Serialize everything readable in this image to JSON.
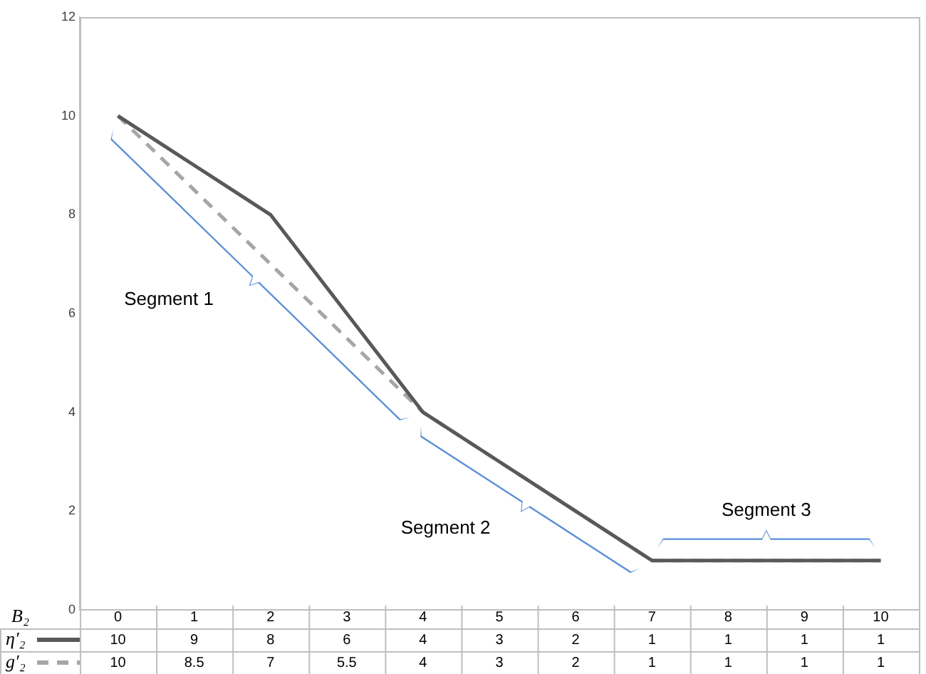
{
  "chart_data": {
    "type": "line",
    "xlabel": "B₂",
    "categories": [
      "0",
      "1",
      "2",
      "3",
      "4",
      "5",
      "6",
      "7",
      "8",
      "9",
      "10"
    ],
    "series": [
      {
        "name": "η′₂",
        "color": "#595959",
        "line_style": "solid",
        "values": [
          10,
          9,
          8,
          6,
          4,
          3,
          2,
          1,
          1,
          1,
          1
        ]
      },
      {
        "name": "g′₂",
        "color": "#a6a6a6",
        "line_style": "dashed",
        "values": [
          10,
          8.5,
          7,
          5.5,
          4,
          3,
          2,
          1,
          1,
          1,
          1
        ]
      }
    ],
    "ylim": [
      0,
      12
    ],
    "yticks": [
      0,
      2,
      4,
      6,
      8,
      10,
      12
    ],
    "grid": false,
    "legend": "bottom",
    "marker": "none",
    "data_labels": true,
    "annotations": [
      "Segment 1",
      "Segment 2",
      "Segment 3"
    ]
  }
}
